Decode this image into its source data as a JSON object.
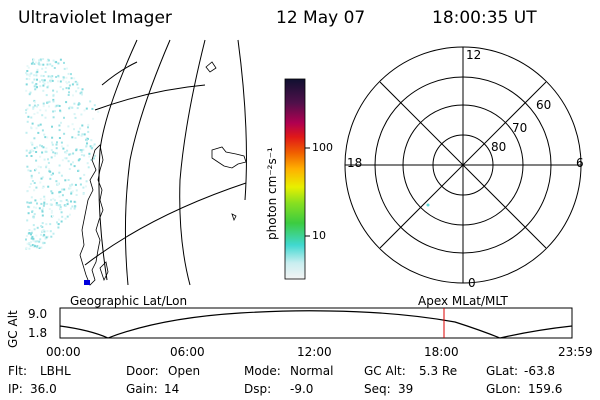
{
  "header": {
    "instrument": "Ultraviolet Imager",
    "date": "12 May 07",
    "time": "18:00:35 UT"
  },
  "colorbar": {
    "unit_label": "photon cm⁻²s⁻¹",
    "ticks": [
      "100",
      "10"
    ]
  },
  "polar_plot": {
    "mlt_labels": {
      "top": "12",
      "left": "18",
      "right": "6",
      "bottom": "0"
    },
    "lat_labels": [
      "60",
      "70",
      "80"
    ]
  },
  "plot_titles": {
    "left": "Geographic Lat/Lon",
    "right": "Apex MLat/MLT"
  },
  "timeline": {
    "axis_label": "GC Alt",
    "y_ticks": [
      "9.0",
      "1.8"
    ],
    "x_ticks": [
      "00:00",
      "06:00",
      "12:00",
      "18:00",
      "23:59"
    ],
    "current_time_fraction": 0.75,
    "marker_color": "#dd0000"
  },
  "status": {
    "row1": [
      {
        "key": "Flt:",
        "value": "LBHL"
      },
      {
        "key": "Door:",
        "value": "Open"
      },
      {
        "key": "Mode:",
        "value": "Normal"
      },
      {
        "key": "GC Alt:",
        "value": "5.3 Re"
      },
      {
        "key": "GLat:",
        "value": "-63.8"
      }
    ],
    "row2": [
      {
        "key": "IP:",
        "value": "36.0"
      },
      {
        "key": "Gain:",
        "value": "14"
      },
      {
        "key": "Dsp:",
        "value": "-9.0"
      },
      {
        "key": "Seq:",
        "value": "39"
      },
      {
        "key": "GLon:",
        "value": "159.6"
      }
    ]
  }
}
